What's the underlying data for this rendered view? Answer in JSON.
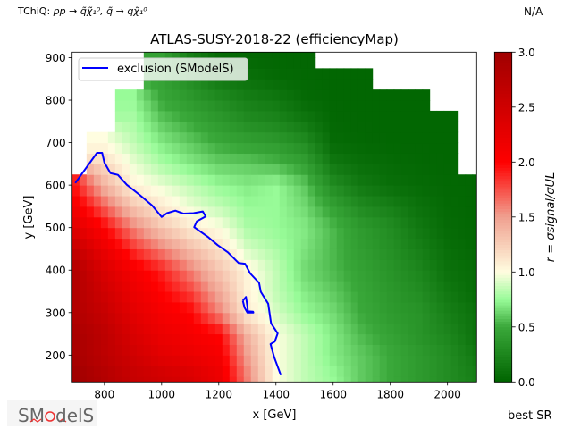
{
  "header": {
    "topology_prefix": "TChiQ: ",
    "topology_formula": "pp → q̃χ̃₁⁰, q̃ → qχ̃₁⁰",
    "status": "N/A"
  },
  "footer": {
    "best_sr_label": "best SR",
    "logo_text": "SModelS"
  },
  "chart_data": {
    "type": "heatmap",
    "title": "ATLAS-SUSY-2018-22 (efficiencyMap)",
    "xlabel": "x [GeV]",
    "ylabel": "y [GeV]",
    "xlim": [
      687,
      2102
    ],
    "ylim": [
      137,
      913
    ],
    "xticks": [
      800,
      1000,
      1200,
      1400,
      1600,
      1800,
      2000
    ],
    "yticks": [
      200,
      300,
      400,
      500,
      600,
      700,
      800,
      900
    ],
    "grid": false,
    "colorbar": {
      "label": "r = σsignal/σUL",
      "range": [
        0,
        3
      ],
      "ticks": [
        "0.0",
        "0.5",
        "1.0",
        "1.5",
        "2.0",
        "2.5",
        "3.0"
      ],
      "colormap": [
        {
          "v": 0.0,
          "color": "#006400"
        },
        {
          "v": 0.5,
          "color": "#3aa83a"
        },
        {
          "v": 0.75,
          "color": "#98fb98"
        },
        {
          "v": 1.0,
          "color": "#fffde0"
        },
        {
          "v": 1.5,
          "color": "#f0a090"
        },
        {
          "v": 2.0,
          "color": "#ff0000"
        },
        {
          "v": 3.0,
          "color": "#a00000"
        }
      ]
    },
    "grid_x": [
      700,
      800,
      900,
      1000,
      1100,
      1200,
      1300,
      1400,
      1500,
      1600,
      1700,
      1800,
      1900,
      2000,
      2100
    ],
    "grid_y": [
      150,
      200,
      250,
      300,
      350,
      400,
      450,
      500,
      550,
      600,
      650,
      700,
      750,
      800,
      850,
      900
    ],
    "r_values": [
      [
        3.0,
        2.8,
        2.6,
        2.5,
        2.4,
        2.2,
        1.6,
        1.0,
        0.85,
        0.75,
        0.6,
        0.5,
        0.4,
        0.3,
        0.2
      ],
      [
        2.9,
        2.7,
        2.5,
        2.3,
        2.2,
        2.1,
        1.5,
        1.0,
        0.85,
        0.7,
        0.6,
        0.5,
        0.4,
        0.3,
        0.15
      ],
      [
        2.9,
        2.7,
        2.4,
        2.2,
        2.1,
        2.0,
        1.4,
        1.0,
        0.85,
        0.7,
        0.55,
        0.45,
        0.35,
        0.25,
        0.1
      ],
      [
        2.8,
        2.6,
        2.3,
        2.1,
        2.0,
        1.6,
        1.1,
        0.9,
        0.75,
        0.65,
        0.5,
        0.4,
        0.35,
        0.2,
        0.1
      ],
      [
        2.8,
        2.5,
        2.2,
        2.0,
        1.8,
        1.45,
        1.05,
        0.85,
        0.7,
        0.6,
        0.48,
        0.38,
        0.3,
        0.15,
        0.05
      ],
      [
        2.8,
        2.4,
        2.1,
        1.9,
        1.6,
        1.3,
        1.05,
        0.85,
        0.65,
        0.55,
        0.45,
        0.35,
        0.25,
        0.1,
        0.05
      ],
      [
        2.6,
        2.2,
        1.85,
        1.6,
        1.35,
        1.15,
        0.9,
        0.8,
        0.68,
        0.55,
        0.42,
        0.32,
        0.2,
        0.08,
        0.03
      ],
      [
        2.3,
        2.0,
        1.6,
        1.3,
        1.1,
        1.0,
        0.8,
        0.75,
        0.7,
        0.55,
        0.4,
        0.3,
        0.15,
        0.05,
        0.02
      ],
      [
        2.1,
        1.7,
        1.3,
        1.1,
        0.95,
        0.85,
        0.75,
        0.75,
        0.65,
        0.45,
        0.28,
        0.2,
        0.1,
        0.04,
        0.02
      ],
      [
        1.9,
        1.4,
        1.05,
        0.95,
        0.85,
        0.75,
        0.7,
        0.75,
        0.6,
        0.3,
        0.15,
        0.08,
        0.05,
        0.03,
        0.02
      ],
      [
        null,
        1.2,
        0.95,
        0.8,
        0.7,
        0.62,
        0.6,
        0.55,
        0.45,
        0.15,
        0.08,
        0.05,
        0.03,
        0.02,
        null
      ],
      [
        null,
        1.0,
        0.85,
        0.7,
        0.6,
        0.5,
        0.45,
        0.4,
        0.3,
        0.05,
        0.03,
        0.02,
        0.02,
        0.02,
        null
      ],
      [
        null,
        null,
        0.8,
        0.6,
        0.5,
        0.4,
        0.3,
        0.25,
        0.15,
        0.03,
        0.02,
        0.02,
        0.02,
        0.02,
        null
      ],
      [
        null,
        null,
        0.75,
        0.5,
        0.4,
        0.3,
        0.2,
        0.15,
        0.05,
        0.02,
        0.02,
        0.02,
        0.02,
        null,
        null
      ],
      [
        null,
        null,
        null,
        0.45,
        0.3,
        0.15,
        0.1,
        0.05,
        0.03,
        0.02,
        0.02,
        null,
        null,
        null,
        null
      ],
      [
        null,
        null,
        null,
        0.45,
        0.2,
        0.05,
        0.03,
        0.02,
        0.02,
        null,
        null,
        null,
        null,
        null,
        null
      ]
    ],
    "series": [
      {
        "name": "exclusion (SModelS)",
        "type": "line",
        "color": "#0000ff",
        "segments": [
          [
            [
              698,
              605
            ],
            [
              774,
              676
            ],
            [
              792,
              676
            ],
            [
              800,
              653
            ],
            [
              821,
              628
            ],
            [
              847,
              624
            ],
            [
              878,
              601
            ],
            [
              925,
              576
            ],
            [
              967,
              552
            ],
            [
              1000,
              525
            ],
            [
              1019,
              534
            ],
            [
              1048,
              540
            ],
            [
              1076,
              533
            ],
            [
              1112,
              534
            ],
            [
              1144,
              538
            ],
            [
              1154,
              526
            ],
            [
              1123,
              515
            ],
            [
              1114,
              501
            ],
            [
              1164,
              477
            ],
            [
              1196,
              459
            ],
            [
              1232,
              442
            ],
            [
              1269,
              417
            ],
            [
              1292,
              415
            ],
            [
              1310,
              392
            ],
            [
              1341,
              370
            ],
            [
              1347,
              349
            ],
            [
              1373,
              321
            ],
            [
              1383,
              275
            ],
            [
              1406,
              251
            ],
            [
              1396,
              232
            ],
            [
              1381,
              226
            ],
            [
              1394,
              195
            ],
            [
              1417,
              153
            ]
          ],
          [
            [
              1284,
              328
            ],
            [
              1295,
              337
            ],
            [
              1300,
              315
            ],
            [
              1302,
              303
            ],
            [
              1320,
              302
            ],
            [
              1321,
              300
            ],
            [
              1300,
              300
            ],
            [
              1290,
              312
            ],
            [
              1284,
              328
            ]
          ]
        ]
      }
    ],
    "legend": {
      "placement": "top-left",
      "entries": [
        "exclusion (SModelS)"
      ]
    }
  }
}
